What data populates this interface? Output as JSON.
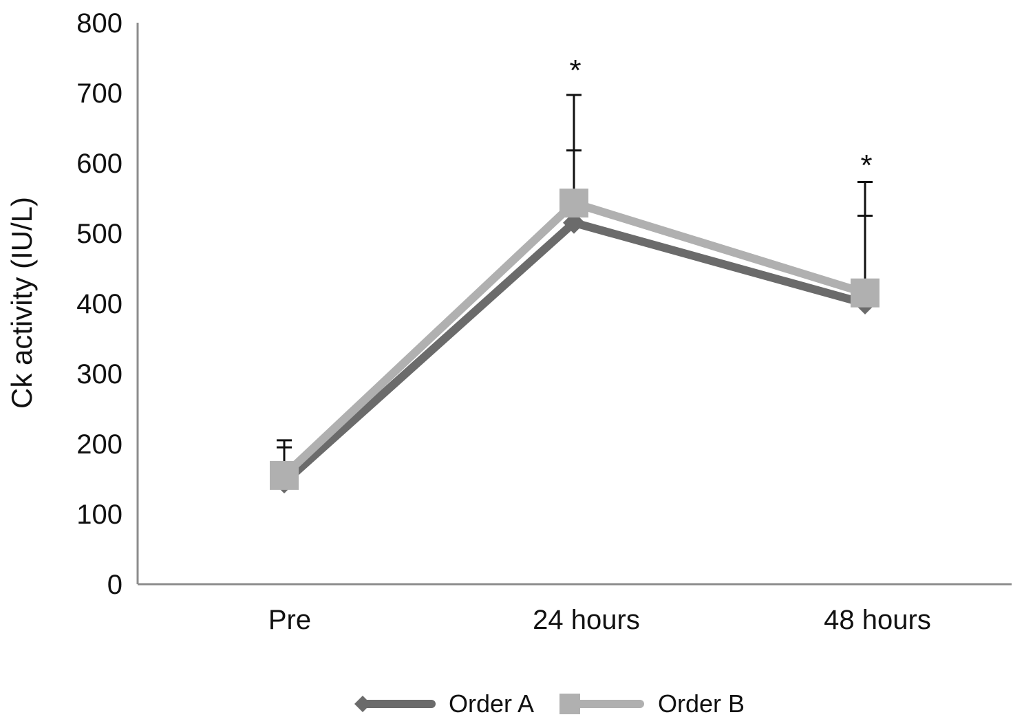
{
  "chart_data": {
    "type": "line",
    "title": "",
    "xlabel": "",
    "ylabel": "Ck activity (IU/L)",
    "categories": [
      "Pre",
      "24 hours",
      "48 hours"
    ],
    "ylim": [
      0,
      800
    ],
    "yticks": [
      "0",
      "100",
      "200",
      "300",
      "400",
      "500",
      "600",
      "700",
      "800"
    ],
    "grid": false,
    "legend_position": "bottom",
    "series": [
      {
        "name": "Order A",
        "values": [
          145,
          515,
          400
        ],
        "error_upper": [
          195,
          618,
          525
        ],
        "color": "#6b6b6b",
        "marker": "diamond"
      },
      {
        "name": "Order B",
        "values": [
          155,
          543,
          415
        ],
        "error_upper": [
          205,
          697,
          573
        ],
        "color": "#b0b0b0",
        "marker": "square"
      }
    ],
    "annotations": [
      {
        "category": "24 hours",
        "text": "*",
        "value": 745
      },
      {
        "category": "48 hours",
        "text": "*",
        "value": 610
      }
    ]
  }
}
